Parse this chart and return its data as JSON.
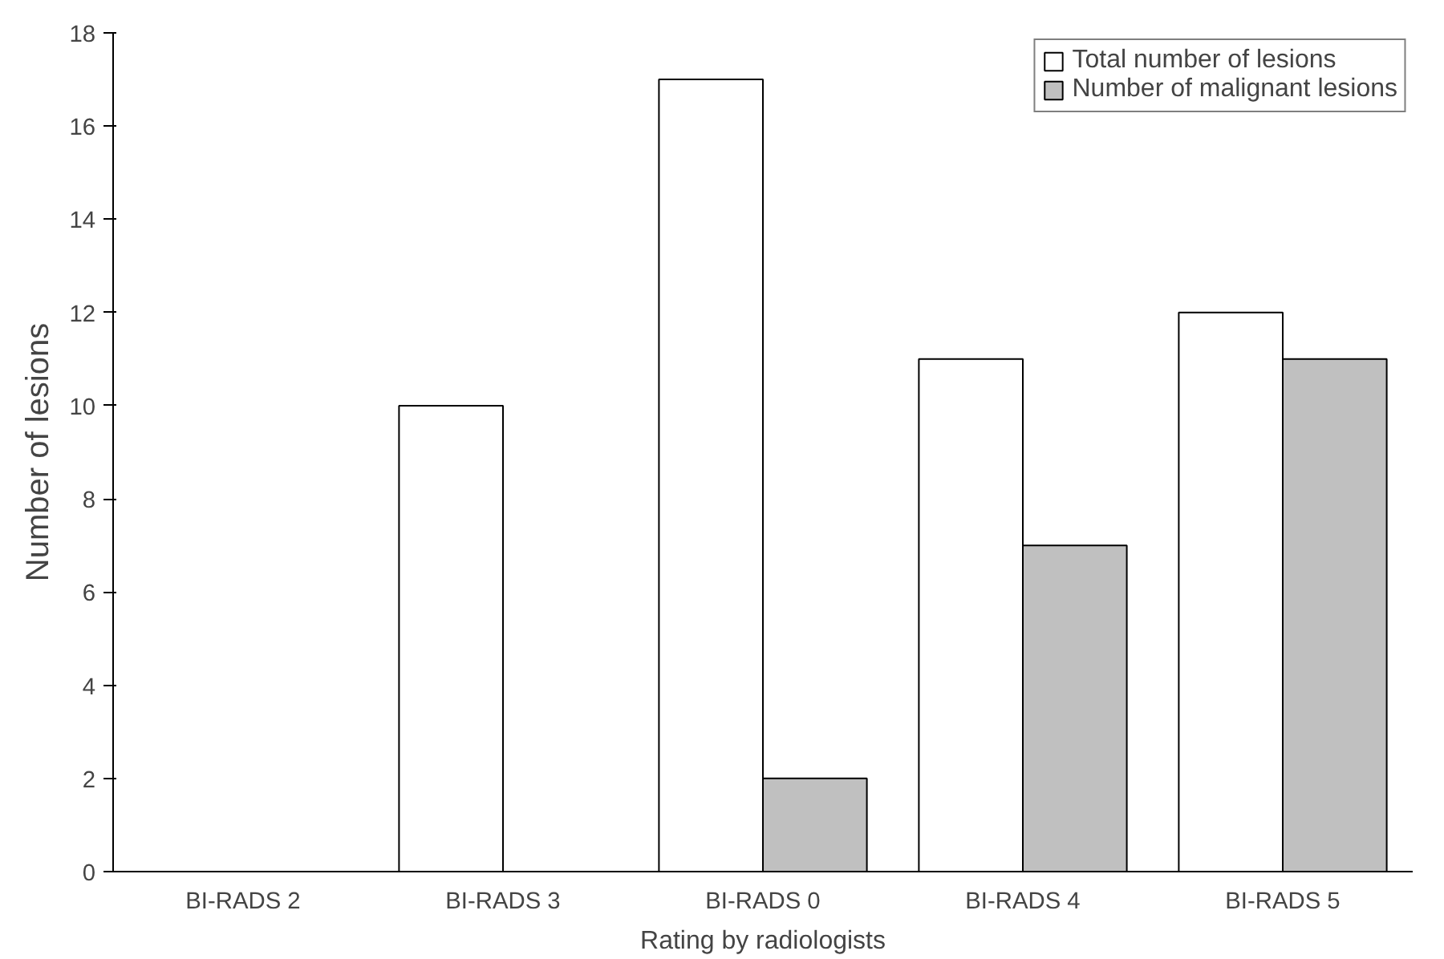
{
  "chart_data": {
    "type": "bar",
    "xlabel": "Rating by radiologists",
    "ylabel": "Number of lesions",
    "categories": [
      "BI-RADS 2",
      "BI-RADS 3",
      "BI-RADS 0",
      "BI-RADS 4",
      "BI-RADS 5"
    ],
    "series": [
      {
        "name": "Total number of lesions",
        "color": "#ffffff",
        "values": [
          0,
          10,
          17,
          11,
          12
        ]
      },
      {
        "name": "Number of malignant lesions",
        "color": "#c0c0c0",
        "values": [
          0,
          0,
          2,
          7,
          11
        ]
      }
    ],
    "ylim": [
      0,
      18
    ],
    "yticks": [
      0,
      2,
      4,
      6,
      8,
      10,
      12,
      14,
      16,
      18
    ],
    "grid": false,
    "legend": "top right"
  }
}
